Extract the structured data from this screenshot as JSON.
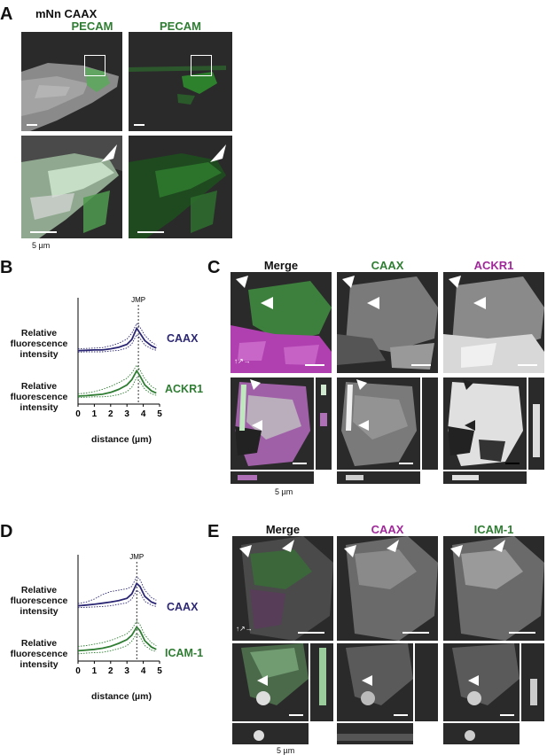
{
  "panels": {
    "A": {
      "label": "A",
      "header_line1": "mNn CAAX",
      "header_col1": "PECAM",
      "header_col2": "PECAM",
      "scale": "5 µm"
    },
    "B": {
      "label": "B"
    },
    "C": {
      "label": "C",
      "col_headers": [
        "Merge",
        "CAAX",
        "ACKR1"
      ],
      "scale": "5 µm"
    },
    "D": {
      "label": "D"
    },
    "E": {
      "label": "E",
      "col_headers": [
        "Merge",
        "CAAX",
        "ICAM-1"
      ],
      "scale": "5 µm"
    }
  },
  "colors": {
    "green": "#2e7d32",
    "navy": "#2b2673",
    "purple": "#7b1f7b",
    "magenta": "#c83cc8"
  },
  "chart_data": [
    {
      "type": "line",
      "panel": "B",
      "xlabel": "distance (µm)",
      "ylabel_top": "Relative fluorescence intensity",
      "ylabel_bottom": "Relative fluorescence intensity",
      "annotation": "JMP",
      "annotation_x": 3.7,
      "xticks": [
        0,
        1,
        2,
        3,
        4,
        5
      ],
      "xlim": [
        0,
        5
      ],
      "series": [
        {
          "name": "CAAX",
          "color": "#2b2673",
          "x": [
            0,
            0.5,
            1,
            1.5,
            2,
            2.5,
            3,
            3.3,
            3.6,
            3.8,
            4.1,
            4.5,
            4.8
          ],
          "mean": [
            0.15,
            0.16,
            0.17,
            0.17,
            0.2,
            0.24,
            0.32,
            0.45,
            0.75,
            0.62,
            0.42,
            0.28,
            0.22
          ],
          "upper": [
            0.2,
            0.21,
            0.22,
            0.23,
            0.28,
            0.35,
            0.46,
            0.62,
            0.88,
            0.78,
            0.56,
            0.38,
            0.3
          ],
          "lower": [
            0.11,
            0.12,
            0.12,
            0.12,
            0.14,
            0.16,
            0.22,
            0.33,
            0.58,
            0.48,
            0.3,
            0.2,
            0.16
          ]
        },
        {
          "name": "ACKR1",
          "color": "#2e7d32",
          "x": [
            0,
            0.5,
            1,
            1.5,
            2,
            2.5,
            3,
            3.3,
            3.6,
            3.8,
            4.1,
            4.5,
            4.8
          ],
          "mean": [
            0.12,
            0.13,
            0.15,
            0.17,
            0.22,
            0.3,
            0.42,
            0.56,
            0.8,
            0.66,
            0.42,
            0.26,
            0.2
          ],
          "upper": [
            0.18,
            0.2,
            0.24,
            0.3,
            0.38,
            0.48,
            0.6,
            0.74,
            0.95,
            0.82,
            0.58,
            0.38,
            0.3
          ],
          "lower": [
            0.08,
            0.09,
            0.1,
            0.1,
            0.12,
            0.16,
            0.24,
            0.36,
            0.62,
            0.5,
            0.3,
            0.18,
            0.14
          ]
        }
      ]
    },
    {
      "type": "line",
      "panel": "D",
      "xlabel": "distance (µm)",
      "ylabel_top": "Relative fluorescence intensity",
      "ylabel_bottom": "Relative fluorescence intensity",
      "annotation": "JMP",
      "annotation_x": 3.6,
      "xticks": [
        0,
        1,
        2,
        3,
        4,
        5
      ],
      "xlim": [
        0,
        5
      ],
      "series": [
        {
          "name": "CAAX",
          "color": "#2b2673",
          "x": [
            0,
            0.5,
            1,
            1.5,
            2,
            2.5,
            3,
            3.3,
            3.6,
            3.8,
            4.1,
            4.5,
            4.8
          ],
          "mean": [
            0.2,
            0.22,
            0.24,
            0.27,
            0.3,
            0.34,
            0.4,
            0.52,
            0.8,
            0.72,
            0.45,
            0.3,
            0.25
          ],
          "upper": [
            0.26,
            0.3,
            0.38,
            0.5,
            0.58,
            0.62,
            0.66,
            0.72,
            0.98,
            0.9,
            0.62,
            0.42,
            0.35
          ],
          "lower": [
            0.15,
            0.16,
            0.17,
            0.18,
            0.2,
            0.24,
            0.28,
            0.38,
            0.62,
            0.55,
            0.32,
            0.22,
            0.18
          ]
        },
        {
          "name": "ICAM-1",
          "color": "#2e7d32",
          "x": [
            0,
            0.5,
            1,
            1.5,
            2,
            2.5,
            3,
            3.3,
            3.6,
            3.8,
            4.1,
            4.5,
            4.8
          ],
          "mean": [
            0.18,
            0.2,
            0.22,
            0.25,
            0.3,
            0.38,
            0.48,
            0.6,
            0.82,
            0.72,
            0.45,
            0.28,
            0.22
          ],
          "upper": [
            0.3,
            0.32,
            0.36,
            0.4,
            0.46,
            0.54,
            0.64,
            0.76,
            0.98,
            0.88,
            0.6,
            0.4,
            0.32
          ],
          "lower": [
            0.1,
            0.12,
            0.13,
            0.14,
            0.18,
            0.24,
            0.32,
            0.44,
            0.64,
            0.56,
            0.32,
            0.2,
            0.16
          ]
        }
      ]
    }
  ]
}
